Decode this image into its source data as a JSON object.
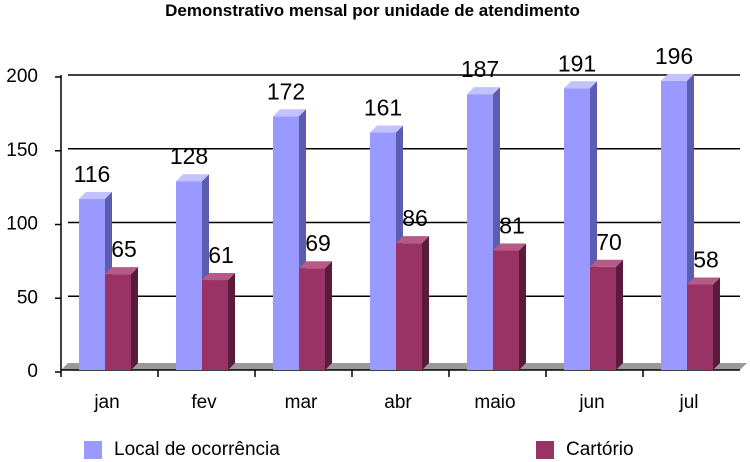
{
  "chart_data": {
    "type": "bar",
    "title": "Demonstrativo mensal por unidade de atendimento",
    "xlabel": "",
    "ylabel": "",
    "ylim": [
      0,
      200
    ],
    "yticks": [
      0,
      50,
      100,
      150,
      200
    ],
    "categories": [
      "jan",
      "fev",
      "mar",
      "abr",
      "maio",
      "jun",
      "jul"
    ],
    "series": [
      {
        "name": "Local de ocorrência",
        "values": [
          116,
          128,
          172,
          161,
          187,
          191,
          196
        ],
        "color": "#9999ff",
        "side_color": "#5c5cb0",
        "top_color": "#c2c2ff"
      },
      {
        "name": "Cartório",
        "values": [
          65,
          61,
          69,
          86,
          81,
          70,
          58
        ],
        "color": "#993366",
        "side_color": "#5a1c3b",
        "top_color": "#b65a87"
      }
    ],
    "legend_position": "bottom",
    "grid": true
  }
}
